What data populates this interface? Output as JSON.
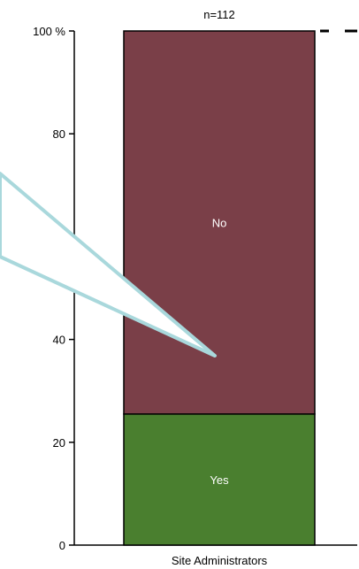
{
  "chart_data": {
    "type": "bar",
    "stacked": true,
    "categories": [
      "Site Administrators"
    ],
    "series": [
      {
        "name": "Yes",
        "values": [
          25.5
        ],
        "color": "#4a7f2f"
      },
      {
        "name": "No",
        "values": [
          74.5
        ],
        "color": "#7a3f48"
      }
    ],
    "n_label": "n=112",
    "ylim": [
      0,
      100
    ],
    "yticks": [
      {
        "value": 0,
        "label": "0"
      },
      {
        "value": 20,
        "label": "20"
      },
      {
        "value": 40,
        "label": "40"
      },
      {
        "value": 80,
        "label": "80"
      },
      {
        "value": 100,
        "label": "100 %"
      }
    ],
    "grid": false,
    "callout": {
      "color": "#a9d8dc",
      "fill": "#ffffff"
    }
  }
}
